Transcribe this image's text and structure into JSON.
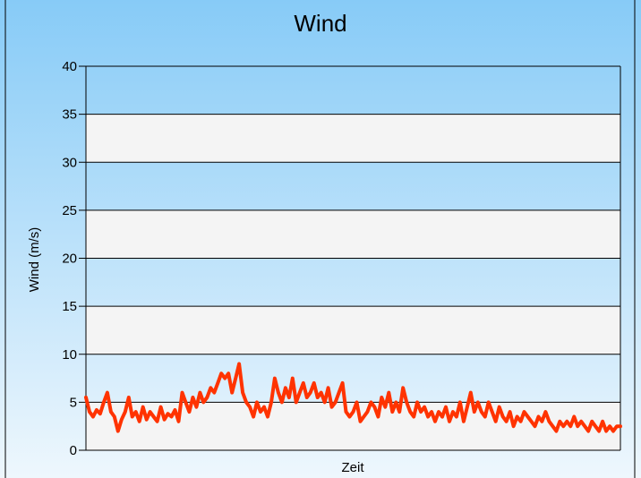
{
  "chart_data": {
    "type": "line",
    "title": "Wind",
    "xlabel": "Zeit",
    "ylabel": "Wind (m/s)",
    "ylim": [
      0,
      40
    ],
    "yticks": [
      0,
      5,
      10,
      15,
      20,
      25,
      30,
      35,
      40
    ],
    "ytick_labels": [
      "0",
      "5",
      "10",
      "15",
      "20",
      "25",
      "30",
      "35",
      "40"
    ],
    "grid": true,
    "legend": "none",
    "series": [
      {
        "color": "#ff3300",
        "x": [
          0,
          4,
          8,
          12,
          16,
          20,
          24,
          28,
          32,
          36,
          40,
          44,
          48,
          52,
          56,
          60,
          64,
          68,
          72,
          76,
          80,
          84,
          88,
          92,
          96,
          100,
          104,
          108,
          112,
          116,
          120,
          124,
          128,
          132,
          136,
          140,
          144,
          148,
          152,
          156,
          160,
          164,
          168,
          172,
          176,
          180,
          184,
          188,
          192,
          196,
          200
        ],
        "values": [
          5.5,
          4.0,
          3.5,
          4.2,
          3.8,
          5.0,
          6.0,
          4.0,
          3.5,
          2.0,
          3.2,
          4.0,
          5.5,
          3.5,
          4.0,
          3.0,
          4.5,
          3.2,
          4.0,
          3.5,
          3.0,
          4.5,
          3.2,
          3.8,
          3.5,
          4.2,
          3.0,
          6.0,
          5.0,
          4.0,
          5.5,
          4.5,
          6.0,
          5.0,
          5.5,
          6.5,
          6.0,
          7.0,
          8.0,
          7.5,
          8.0,
          6.0,
          7.5,
          9.0,
          6.0,
          5.0,
          4.5,
          3.5,
          5.0,
          4.0,
          4.5
        ]
      },
      {
        "color": "#ff3300",
        "x": [
          200,
          204,
          208,
          212,
          216,
          220,
          224,
          228,
          232,
          236,
          240,
          244,
          248,
          252,
          256,
          260,
          264,
          268,
          272,
          276,
          280,
          284,
          288,
          292,
          296,
          300,
          304,
          308,
          312,
          316,
          320,
          324,
          328,
          332,
          336,
          340,
          344,
          348,
          352,
          356,
          360,
          364,
          368,
          372,
          376,
          380,
          384,
          388,
          392,
          396,
          400
        ],
        "values": [
          4.5,
          3.5,
          5.0,
          7.5,
          6.0,
          5.0,
          6.5,
          5.5,
          7.5,
          5.0,
          6.0,
          7.0,
          5.5,
          6.0,
          7.0,
          5.5,
          6.0,
          5.0,
          6.5,
          4.5,
          5.0,
          6.0,
          7.0,
          4.0,
          3.5,
          4.0,
          5.0,
          3.0,
          3.5,
          4.0,
          5.0,
          4.5,
          3.5,
          5.5,
          4.5,
          6.0,
          4.0,
          5.0,
          4.0,
          6.5,
          5.0,
          4.0,
          3.5,
          5.0,
          4.0,
          4.5,
          3.5,
          4.0,
          3.0,
          4.0,
          3.5
        ]
      },
      {
        "color": "#ff3300",
        "x": [
          400,
          404,
          408,
          412,
          416,
          420,
          424,
          428,
          432,
          436,
          440,
          444,
          448,
          452,
          456,
          460,
          464,
          468,
          472,
          476,
          480,
          484,
          488,
          492,
          496,
          500,
          504,
          508,
          512,
          516,
          520,
          524,
          528,
          532,
          536,
          540,
          544,
          548,
          552,
          556,
          560,
          564,
          568,
          572,
          576,
          580,
          584,
          588,
          592,
          596,
          600
        ],
        "values": [
          3.5,
          4.5,
          3.0,
          4.0,
          3.5,
          5.0,
          3.0,
          4.5,
          6.0,
          4.0,
          5.0,
          4.0,
          3.5,
          5.0,
          4.0,
          3.0,
          4.5,
          3.5,
          3.0,
          4.0,
          2.5,
          3.5,
          3.0,
          4.0,
          3.5,
          3.0,
          2.5,
          3.5,
          3.0,
          4.0,
          3.0,
          2.5,
          2.0,
          3.0,
          2.5,
          3.0,
          2.5,
          3.5,
          2.5,
          3.0,
          2.5,
          2.0,
          3.0,
          2.5,
          2.0,
          3.0,
          2.0,
          2.5,
          2.0,
          2.5,
          2.5
        ]
      }
    ]
  }
}
